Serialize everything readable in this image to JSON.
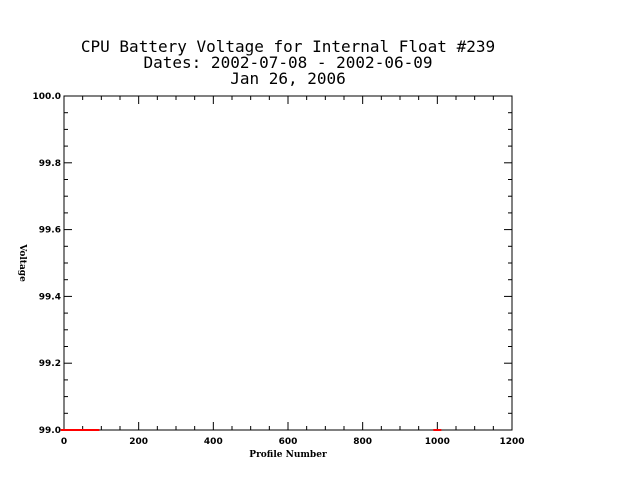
{
  "chart_data": {
    "type": "scatter",
    "title_lines": [
      "CPU Battery Voltage for Internal Float #239",
      "Dates:  2002-07-08 -  2002-06-09",
      "Jan 26, 2006"
    ],
    "xlabel": "Profile Number",
    "ylabel": "Voltage",
    "xlim": [
      0,
      1200
    ],
    "ylim": [
      99.0,
      100.0
    ],
    "x_ticks": [
      0,
      200,
      400,
      600,
      800,
      1000,
      1200
    ],
    "x_tick_labels": [
      "0",
      "200",
      "400",
      "600",
      "800",
      "1000",
      "1200"
    ],
    "y_ticks": [
      99.0,
      99.2,
      99.4,
      99.6,
      99.8,
      100.0
    ],
    "y_tick_labels": [
      "99.0",
      "99.2",
      "99.4",
      "99.6",
      "99.8",
      "100.0"
    ],
    "x_minor_step": 50,
    "y_minor_step": 0.05,
    "grid": false,
    "series_color": "#ff0000",
    "points": [
      {
        "x": 2,
        "y": 99.0
      },
      {
        "x": 10,
        "y": 99.0
      },
      {
        "x": 20,
        "y": 99.0
      },
      {
        "x": 28,
        "y": 99.0
      },
      {
        "x": 36,
        "y": 99.0
      },
      {
        "x": 44,
        "y": 99.0
      },
      {
        "x": 52,
        "y": 99.0
      },
      {
        "x": 60,
        "y": 99.0
      },
      {
        "x": 68,
        "y": 99.0
      },
      {
        "x": 76,
        "y": 99.0
      },
      {
        "x": 84,
        "y": 99.0
      },
      {
        "x": 1000,
        "y": 99.0
      }
    ]
  }
}
